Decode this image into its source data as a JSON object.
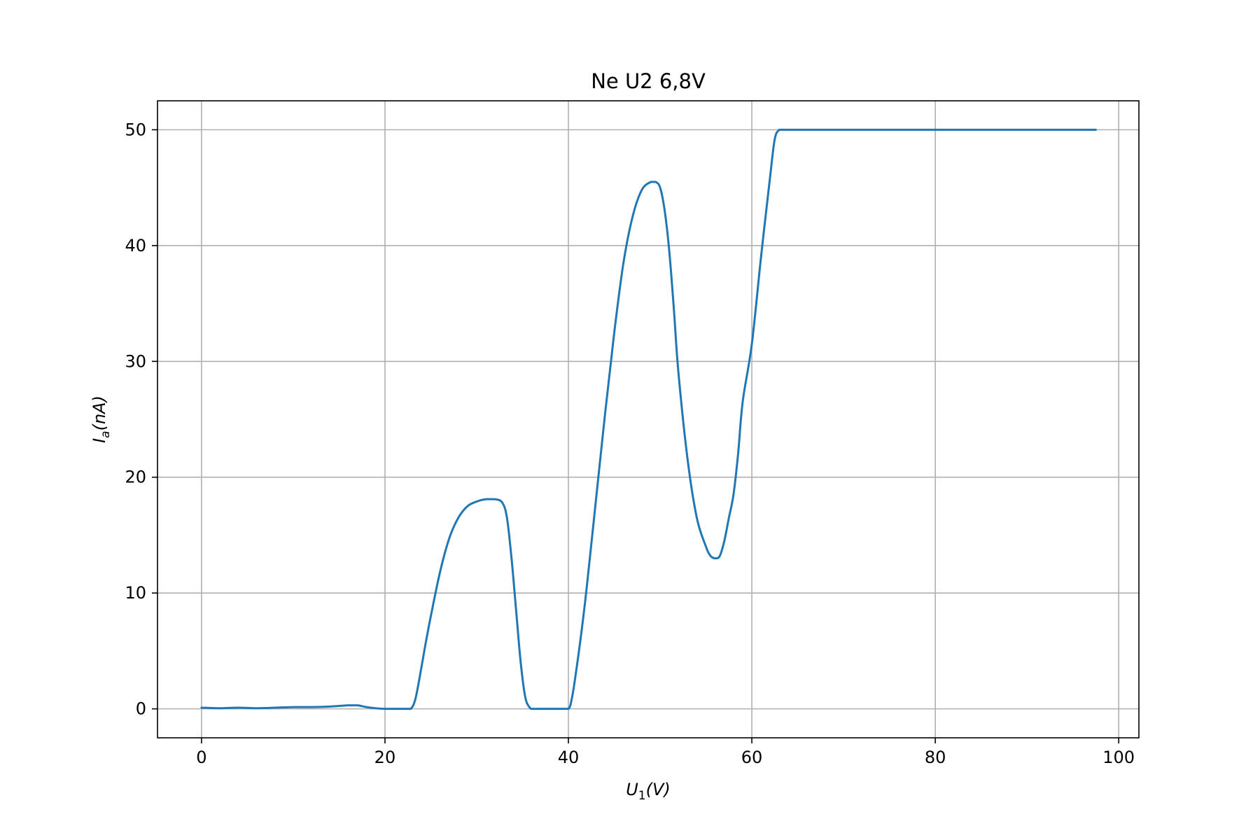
{
  "chart_data": {
    "type": "line",
    "title": "Ne U2 6,8V",
    "xlabel": {
      "main": "U",
      "sub": "1",
      "unit": "(V)"
    },
    "ylabel": {
      "main": "I",
      "sub": "a",
      "unit": "(nA)"
    },
    "xlim": [
      -4.8,
      102.2
    ],
    "ylim": [
      -2.5,
      52.5
    ],
    "xticks": [
      0,
      20,
      40,
      60,
      80,
      100
    ],
    "xtick_labels": [
      "0",
      "20",
      "40",
      "60",
      "80",
      "100"
    ],
    "yticks": [
      0,
      10,
      20,
      30,
      40,
      50
    ],
    "ytick_labels": [
      "0",
      "10",
      "20",
      "30",
      "40",
      "50"
    ],
    "grid": true,
    "legend": "none",
    "series": [
      {
        "color": "#1f77b4",
        "x": [
          0,
          2,
          4,
          6,
          8,
          10,
          12,
          14,
          16,
          17,
          18,
          19,
          20,
          21,
          22,
          22.8,
          23.3,
          23.8,
          24.4,
          25,
          26,
          27,
          28,
          29,
          30,
          31,
          32,
          32.8,
          33.3,
          33.8,
          34.3,
          34.8,
          35.3,
          35.8,
          36.2,
          36.6,
          37,
          38,
          39,
          40,
          40.4,
          40.8,
          41.4,
          42,
          43,
          44,
          45,
          46,
          47,
          48,
          49,
          49.5,
          50,
          50.5,
          51,
          51.5,
          52,
          53,
          54,
          55,
          55.5,
          56,
          56.5,
          57,
          57.5,
          58,
          58.5,
          59,
          60,
          61,
          62,
          62.5,
          63,
          63.5,
          64,
          70,
          80,
          90,
          97.5
        ],
        "y": [
          0.1,
          0.05,
          0.1,
          0.05,
          0.1,
          0.15,
          0.15,
          0.2,
          0.3,
          0.3,
          0.15,
          0.05,
          0,
          0,
          0,
          0,
          0.8,
          2.8,
          5.5,
          8,
          11.8,
          14.7,
          16.5,
          17.5,
          17.9,
          18.1,
          18.1,
          17.8,
          16.5,
          13,
          8.5,
          4,
          1,
          0.1,
          0,
          0,
          0,
          0,
          0,
          0,
          1,
          3,
          6.5,
          10.5,
          18,
          25.5,
          32.5,
          38.5,
          42.5,
          44.8,
          45.5,
          45.5,
          45,
          43,
          39.5,
          34.5,
          29,
          21.5,
          16.5,
          14,
          13.2,
          13,
          13.2,
          14.5,
          16.5,
          18.5,
          22,
          26.5,
          31.5,
          39,
          46,
          49.2,
          50,
          50,
          50,
          50,
          50,
          50,
          50
        ]
      }
    ]
  }
}
